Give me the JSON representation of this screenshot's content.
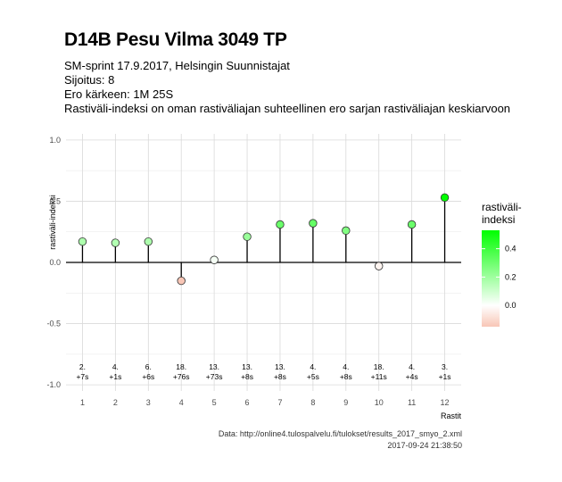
{
  "header": {
    "title": "D14B Pesu Vilma 3049 TP",
    "subtitle_lines": [
      "SM-sprint 17.9.2017, Helsingin Suunnistajat",
      "Sijoitus: 8",
      "Ero kärkeen: 1M 25S",
      "Rastiväli-indeksi on oman rastiväliajan suhteellinen ero sarjan rastiväliajan keskiarvoon"
    ]
  },
  "caption": {
    "source": "Data: http://online4.tulospalvelu.fi/tulokset/results_2017_smyo_2.xml",
    "timestamp": "2017-09-24 21:38:50"
  },
  "chart_data": {
    "type": "scatter",
    "title": "D14B Pesu Vilma 3049 TP",
    "xlabel": "Rastit",
    "ylabel": "rastiväli-indeksi",
    "x": [
      1,
      2,
      3,
      4,
      5,
      6,
      7,
      8,
      9,
      10,
      11,
      12
    ],
    "values": [
      0.17,
      0.16,
      0.17,
      -0.15,
      0.02,
      0.21,
      0.31,
      0.32,
      0.26,
      -0.03,
      0.31,
      0.53
    ],
    "leg_rank": [
      "2.",
      "4.",
      "6.",
      "18.",
      "13.",
      "13.",
      "13.",
      "4.",
      "4.",
      "18.",
      "4.",
      "3."
    ],
    "leg_diff": [
      "+7s",
      "+1s",
      "+6s",
      "+76s",
      "+73s",
      "+8s",
      "+8s",
      "+5s",
      "+8s",
      "+11s",
      "+4s",
      "+1s"
    ],
    "ylim": [
      -1.05,
      1.05
    ],
    "yticks": [
      -1.0,
      -0.5,
      0.0,
      0.5,
      1.0
    ],
    "ytick_labels": [
      "-1.0",
      "-0.5",
      "0.0",
      "0.5",
      "1.0"
    ],
    "xtick_labels": [
      "1",
      "2",
      "3",
      "4",
      "5",
      "6",
      "7",
      "8",
      "9",
      "10",
      "11",
      "12"
    ],
    "grid": true,
    "legend": {
      "title_lines": [
        "rastiväli-",
        "indeksi"
      ],
      "ticks": [
        0.0,
        0.2,
        0.4
      ],
      "tick_labels": [
        "0.0",
        "0.2",
        "0.4"
      ],
      "range": [
        -0.15,
        0.53
      ],
      "placement": "right"
    },
    "colors": {
      "low": "#f8c6b6",
      "mid": "#ffffff",
      "high": "#00ff00"
    }
  }
}
